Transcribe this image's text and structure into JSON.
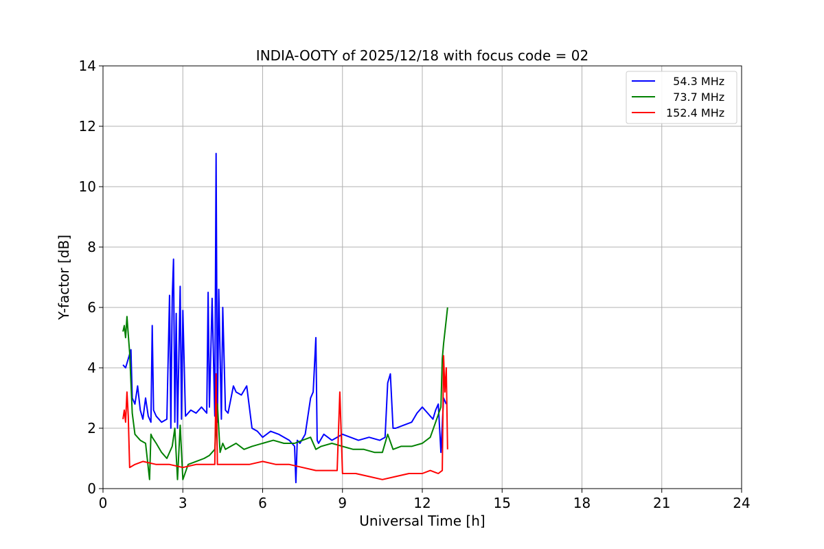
{
  "chart_data": {
    "type": "line",
    "title": "INDIA-OOTY of 2025/12/18 with focus code = 02",
    "xlabel": "Universal Time [h]",
    "ylabel": "Y-factor [dB]",
    "xlim": [
      0,
      24
    ],
    "ylim": [
      0,
      14
    ],
    "xticks": [
      0,
      3,
      6,
      9,
      12,
      15,
      18,
      21,
      24
    ],
    "yticks": [
      0,
      2,
      4,
      6,
      8,
      10,
      12,
      14
    ],
    "grid": true,
    "legend_position": "top-right",
    "series": [
      {
        "name": "  54.3 MHz",
        "color": "#0000ff",
        "x": [
          0.75,
          0.85,
          0.95,
          1.05,
          1.1,
          1.2,
          1.3,
          1.4,
          1.5,
          1.6,
          1.7,
          1.8,
          1.85,
          1.9,
          2.0,
          2.2,
          2.4,
          2.5,
          2.55,
          2.6,
          2.65,
          2.7,
          2.75,
          2.8,
          2.9,
          2.95,
          3.0,
          3.1,
          3.3,
          3.5,
          3.7,
          3.9,
          3.95,
          4.0,
          4.1,
          4.2,
          4.25,
          4.3,
          4.35,
          4.45,
          4.5,
          4.6,
          4.7,
          4.9,
          5.0,
          5.2,
          5.4,
          5.6,
          5.8,
          6.0,
          6.3,
          6.6,
          7.0,
          7.2,
          7.25,
          7.3,
          7.4,
          7.6,
          7.8,
          7.9,
          8.0,
          8.05,
          8.1,
          8.3,
          8.6,
          9.0,
          9.3,
          9.6,
          10.0,
          10.4,
          10.6,
          10.7,
          10.8,
          10.9,
          11.0,
          11.3,
          11.6,
          11.8,
          12.0,
          12.2,
          12.4,
          12.5,
          12.6,
          12.7,
          12.8,
          12.9
        ],
        "values": [
          4.1,
          4.0,
          4.3,
          4.6,
          3.0,
          2.8,
          3.4,
          2.6,
          2.3,
          3.0,
          2.4,
          2.2,
          5.4,
          2.6,
          2.4,
          2.2,
          2.3,
          6.4,
          2.0,
          6.3,
          7.6,
          2.2,
          5.8,
          2.0,
          6.7,
          2.3,
          5.9,
          2.4,
          2.6,
          2.5,
          2.7,
          2.5,
          6.5,
          2.7,
          6.3,
          2.4,
          11.1,
          2.2,
          6.6,
          2.3,
          6.0,
          2.6,
          2.5,
          3.4,
          3.2,
          3.1,
          3.4,
          2.0,
          1.9,
          1.7,
          1.9,
          1.8,
          1.6,
          1.4,
          0.2,
          1.6,
          1.5,
          1.8,
          3.0,
          3.2,
          5.0,
          1.6,
          1.5,
          1.8,
          1.6,
          1.8,
          1.7,
          1.6,
          1.7,
          1.6,
          1.7,
          3.5,
          3.8,
          2.0,
          2.0,
          2.1,
          2.2,
          2.5,
          2.7,
          2.5,
          2.3,
          2.6,
          2.8,
          1.2,
          3.0,
          2.8
        ]
      },
      {
        "name": "  73.7 MHz",
        "color": "#008000",
        "x": [
          0.75,
          0.8,
          0.85,
          0.9,
          0.95,
          1.0,
          1.1,
          1.2,
          1.4,
          1.6,
          1.75,
          1.8,
          1.85,
          2.0,
          2.2,
          2.4,
          2.6,
          2.7,
          2.8,
          2.9,
          3.0,
          3.2,
          3.5,
          3.8,
          4.0,
          4.2,
          4.3,
          4.4,
          4.5,
          4.6,
          4.8,
          5.0,
          5.3,
          5.6,
          6.0,
          6.4,
          6.8,
          7.2,
          7.5,
          7.8,
          8.0,
          8.2,
          8.6,
          9.0,
          9.4,
          9.8,
          10.2,
          10.5,
          10.7,
          10.9,
          11.2,
          11.6,
          12.0,
          12.3,
          12.5,
          12.7,
          12.75,
          12.8,
          12.9,
          12.95
        ],
        "values": [
          5.2,
          5.4,
          5.0,
          5.7,
          5.1,
          4.5,
          2.5,
          1.8,
          1.6,
          1.5,
          0.3,
          1.8,
          1.7,
          1.5,
          1.2,
          1.0,
          1.4,
          2.0,
          0.3,
          2.1,
          0.3,
          0.8,
          0.9,
          1.0,
          1.1,
          1.3,
          2.8,
          1.2,
          1.5,
          1.3,
          1.4,
          1.5,
          1.3,
          1.4,
          1.5,
          1.6,
          1.5,
          1.5,
          1.6,
          1.7,
          1.3,
          1.4,
          1.5,
          1.4,
          1.3,
          1.3,
          1.2,
          1.2,
          1.8,
          1.3,
          1.4,
          1.4,
          1.5,
          1.7,
          2.2,
          2.7,
          4.3,
          4.8,
          5.6,
          6.0
        ]
      },
      {
        "name": "152.4 MHz",
        "color": "#ff0000",
        "x": [
          0.75,
          0.8,
          0.85,
          0.9,
          0.95,
          1.0,
          1.2,
          1.5,
          2.0,
          2.5,
          3.0,
          3.5,
          4.0,
          4.2,
          4.25,
          4.3,
          4.5,
          5.0,
          5.5,
          6.0,
          6.5,
          7.0,
          7.5,
          8.0,
          8.5,
          8.8,
          8.9,
          9.0,
          9.5,
          10.0,
          10.5,
          11.0,
          11.5,
          12.0,
          12.3,
          12.6,
          12.75,
          12.8,
          12.85,
          12.9,
          12.95
        ],
        "values": [
          2.3,
          2.6,
          2.2,
          3.2,
          2.4,
          0.7,
          0.8,
          0.9,
          0.8,
          0.8,
          0.7,
          0.8,
          0.8,
          0.8,
          3.8,
          0.8,
          0.8,
          0.8,
          0.8,
          0.9,
          0.8,
          0.8,
          0.7,
          0.6,
          0.6,
          0.6,
          3.2,
          0.5,
          0.5,
          0.4,
          0.3,
          0.4,
          0.5,
          0.5,
          0.6,
          0.5,
          0.6,
          4.4,
          3.2,
          4.0,
          1.3
        ]
      }
    ]
  }
}
